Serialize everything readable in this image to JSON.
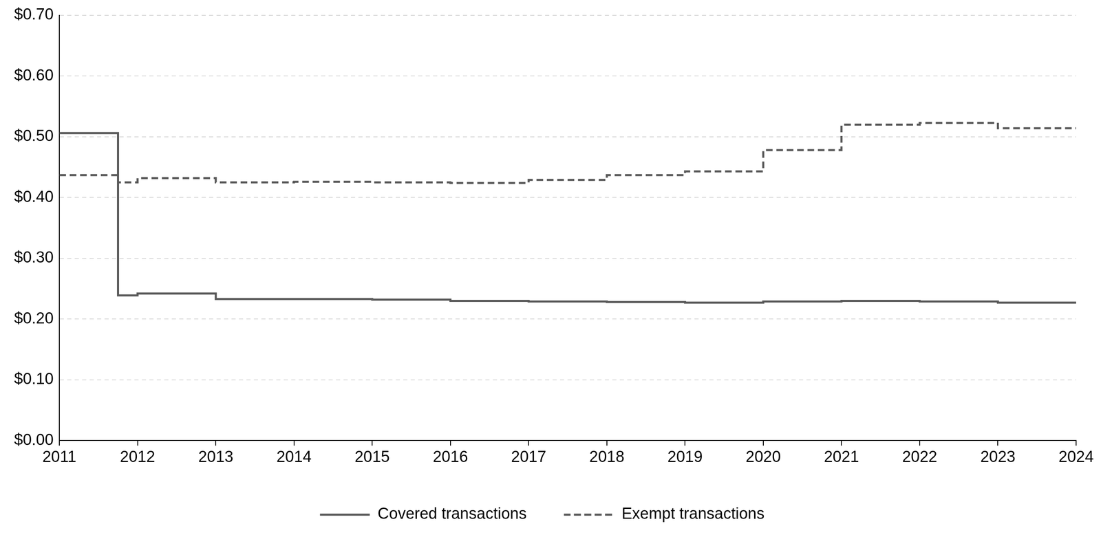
{
  "chart_data": {
    "type": "step",
    "x": [
      2011,
      2011.75,
      2012,
      2013,
      2014,
      2015,
      2016,
      2017,
      2018,
      2019,
      2020,
      2021,
      2022,
      2023,
      2024
    ],
    "series": [
      {
        "name": "Covered transactions",
        "color": "#595959",
        "line_style": "solid",
        "values": [
          0.506,
          0.239,
          0.242,
          0.233,
          0.233,
          0.232,
          0.23,
          0.229,
          0.228,
          0.227,
          0.229,
          0.23,
          0.229,
          0.227,
          0.227
        ]
      },
      {
        "name": "Exempt transactions",
        "color": "#595959",
        "line_style": "dashed",
        "values": [
          0.437,
          0.425,
          0.432,
          0.425,
          0.426,
          0.425,
          0.424,
          0.429,
          0.437,
          0.443,
          0.478,
          0.52,
          0.523,
          0.514,
          0.514
        ]
      }
    ],
    "xlim": [
      2011,
      2024
    ],
    "xticks": [
      2011,
      2012,
      2013,
      2014,
      2015,
      2016,
      2017,
      2018,
      2019,
      2020,
      2021,
      2022,
      2023,
      2024
    ],
    "ylim": [
      0,
      0.7
    ],
    "yticks": [
      {
        "value": 0,
        "label": "$0.00"
      },
      {
        "value": 0.1,
        "label": "$0.10"
      },
      {
        "value": 0.2,
        "label": "$0.20"
      },
      {
        "value": 0.3,
        "label": "$0.30"
      },
      {
        "value": 0.4,
        "label": "$0.40"
      },
      {
        "value": 0.5,
        "label": "$0.50"
      },
      {
        "value": 0.6,
        "label": "$0.60"
      },
      {
        "value": 0.7,
        "label": "$0.70"
      }
    ],
    "grid": true,
    "legend": "bottom"
  }
}
